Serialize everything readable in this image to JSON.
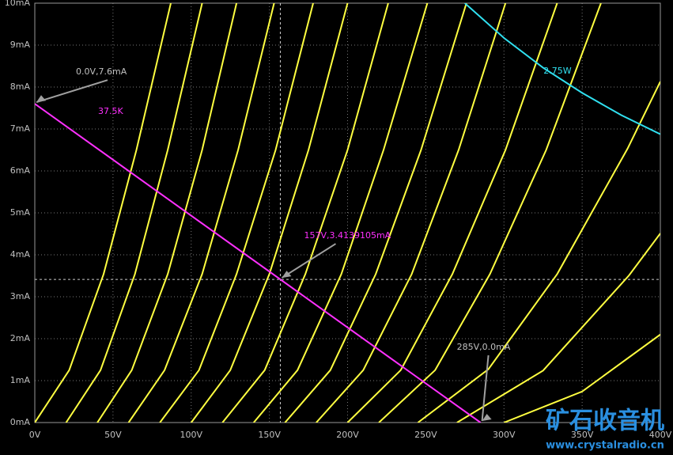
{
  "chart_data": {
    "type": "line",
    "xlim": [
      0,
      400
    ],
    "ylim": [
      0,
      10
    ],
    "xticks": [
      {
        "value": 0,
        "label": "0V"
      },
      {
        "value": 50,
        "label": "50V"
      },
      {
        "value": 100,
        "label": "100V"
      },
      {
        "value": 150,
        "label": "150V"
      },
      {
        "value": 200,
        "label": "200V"
      },
      {
        "value": 250,
        "label": "250V"
      },
      {
        "value": 300,
        "label": "300V"
      },
      {
        "value": 350,
        "label": "350V"
      },
      {
        "value": 400,
        "label": "400V"
      }
    ],
    "yticks": [
      {
        "value": 0,
        "label": "0mA"
      },
      {
        "value": 1,
        "label": "1mA"
      },
      {
        "value": 2,
        "label": "2mA"
      },
      {
        "value": 3,
        "label": "3mA"
      },
      {
        "value": 4,
        "label": "4mA"
      },
      {
        "value": 5,
        "label": "5mA"
      },
      {
        "value": 6,
        "label": "6mA"
      },
      {
        "value": 7,
        "label": "7mA"
      },
      {
        "value": 8,
        "label": "8mA"
      },
      {
        "value": 9,
        "label": "9mA"
      },
      {
        "value": 10,
        "label": "10mA"
      }
    ],
    "grid": true,
    "series": [
      {
        "color": "#ffff40",
        "x": [
          0,
          22,
          44,
          65,
          87
        ],
        "values": [
          0,
          1.25,
          3.54,
          6.5,
          10
        ]
      },
      {
        "color": "#ffff40",
        "x": [
          20,
          42,
          64,
          85,
          107
        ],
        "values": [
          0,
          1.25,
          3.54,
          6.5,
          10
        ]
      },
      {
        "color": "#ffff40",
        "x": [
          40,
          62,
          85,
          107,
          129
        ],
        "values": [
          0,
          1.25,
          3.54,
          6.5,
          10
        ]
      },
      {
        "color": "#ffff40",
        "x": [
          60,
          83,
          107,
          130,
          153
        ],
        "values": [
          0,
          1.25,
          3.54,
          6.5,
          10
        ]
      },
      {
        "color": "#ffff40",
        "x": [
          80,
          105,
          129,
          154,
          178
        ],
        "values": [
          0,
          1.25,
          3.54,
          6.5,
          10
        ]
      },
      {
        "color": "#ffff40",
        "x": [
          100,
          125,
          150,
          175,
          200
        ],
        "values": [
          0,
          1.25,
          3.54,
          6.5,
          10
        ]
      },
      {
        "color": "#ffff40",
        "x": [
          120,
          147,
          173,
          200,
          226
        ],
        "values": [
          0,
          1.25,
          3.54,
          6.5,
          10
        ]
      },
      {
        "color": "#ffff40",
        "x": [
          140,
          168,
          196,
          223,
          251
        ],
        "values": [
          0,
          1.25,
          3.54,
          6.5,
          10
        ]
      },
      {
        "color": "#ffff40",
        "x": [
          160,
          189,
          218,
          247,
          276
        ],
        "values": [
          0,
          1.25,
          3.54,
          6.5,
          10
        ]
      },
      {
        "color": "#ffff40",
        "x": [
          180,
          210,
          241,
          271,
          301
        ],
        "values": [
          0,
          1.25,
          3.54,
          6.5,
          10
        ]
      },
      {
        "color": "#ffff40",
        "x": [
          200,
          234,
          267,
          301,
          334
        ],
        "values": [
          0,
          1.25,
          3.54,
          6.5,
          10
        ]
      },
      {
        "color": "#ffff40",
        "x": [
          220,
          256,
          291,
          327,
          362
        ],
        "values": [
          0,
          1.25,
          3.54,
          6.5,
          10
        ]
      },
      {
        "color": "#ffff40",
        "x": [
          245,
          290,
          334,
          379,
          400
        ],
        "values": [
          0,
          1.27,
          3.54,
          6.53,
          8.13
        ]
      },
      {
        "color": "#ffff40",
        "x": [
          270,
          325,
          380,
          400
        ],
        "values": [
          0,
          1.24,
          3.51,
          4.51
        ]
      },
      {
        "color": "#ffff40",
        "x": [
          300,
          350,
          400
        ],
        "values": [
          0,
          0.74,
          2.1
        ]
      },
      {
        "name": "2.75W",
        "color": "#30e0f0",
        "x": [
          275,
          300,
          325,
          350,
          375,
          400
        ],
        "values": [
          10,
          9.17,
          8.46,
          7.86,
          7.33,
          6.875
        ]
      },
      {
        "name": "37.5K",
        "color": "#ff30ff",
        "x": [
          0,
          285
        ],
        "values": [
          7.6,
          0
        ]
      }
    ],
    "annotations": [
      {
        "text": "0.0V,7.6mA",
        "x": 0,
        "y": 7.6,
        "color": "#c0c0c0"
      },
      {
        "text": "157V,3.4139105mA",
        "x": 157,
        "y": 3.4139105,
        "color": "#ff30ff"
      },
      {
        "text": "285V,0.0mA",
        "x": 285,
        "y": 0,
        "color": "#c0c0c0"
      }
    ]
  },
  "watermark": {
    "title": "矿石收音机",
    "url": "www.crystalradio.cn"
  }
}
